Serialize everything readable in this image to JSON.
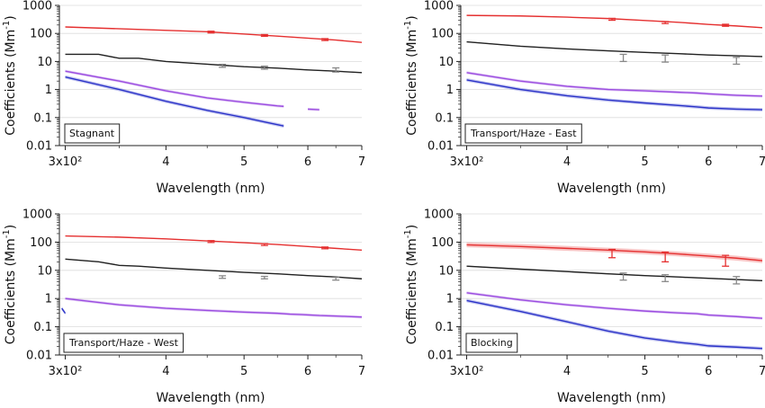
{
  "chart_data": [
    {
      "type": "line",
      "panel_label": "Stagnant",
      "xlabel": "Wavelength (nm)",
      "ylabel": "Coefficients (Mm",
      "ylabel_sup": "-1",
      "ylabel_close": ")",
      "xscale": "log",
      "yscale": "log",
      "xlim": [
        295,
        700
      ],
      "ylim": [
        0.01,
        1000
      ],
      "xticks": [
        "3x10²",
        "4",
        "5",
        "6",
        "7"
      ],
      "yticks": [
        "0.01",
        "0.1",
        "1",
        "10",
        "100",
        "1000"
      ],
      "grid": true,
      "series": [
        {
          "color": "#e53030",
          "x": [
            300,
            450,
            550,
            650,
            700
          ],
          "y": [
            170,
            115,
            80,
            58,
            48
          ],
          "band": 0.03,
          "errorbars": [
            {
              "x": 455,
              "y": 112,
              "lo": 104,
              "hi": 120
            },
            {
              "x": 530,
              "y": 85,
              "lo": 79,
              "hi": 91
            },
            {
              "x": 630,
              "y": 60,
              "lo": 56,
              "hi": 65
            }
          ]
        },
        {
          "color": "#222222",
          "x": [
            300,
            330,
            350,
            370,
            400,
            450,
            500,
            550,
            600,
            650,
            700
          ],
          "y": [
            18,
            18,
            13,
            13,
            10,
            8,
            6.5,
            5.8,
            5,
            4.5,
            4
          ],
          "band": 0.04,
          "errorbars": [
            {
              "x": 470,
              "y": 7,
              "lo": 6.2,
              "hi": 7.9
            },
            {
              "x": 530,
              "y": 6,
              "lo": 5.3,
              "hi": 6.8
            },
            {
              "x": 650,
              "y": 5,
              "lo": 4.2,
              "hi": 5.9
            }
          ]
        },
        {
          "color": "#9b4de0",
          "x": [
            300,
            350,
            400,
            450,
            500,
            550,
            560,
            580,
            600,
            620
          ],
          "y": [
            4.5,
            2.0,
            0.9,
            0.5,
            0.35,
            0.26,
            0.25,
            null,
            0.2,
            0.19
          ],
          "band": 0.12
        },
        {
          "color": "#2b33c8",
          "x": [
            300,
            350,
            400,
            450,
            500,
            530,
            560
          ],
          "y": [
            2.8,
            1.0,
            0.38,
            0.18,
            0.1,
            0.07,
            0.05
          ],
          "band": 0.15
        }
      ]
    },
    {
      "type": "line",
      "panel_label": "Transport/Haze - East",
      "xlabel": "Wavelength (nm)",
      "ylabel": "Coefficients (Mm",
      "ylabel_sup": "-1",
      "ylabel_close": ")",
      "xscale": "log",
      "yscale": "log",
      "xlim": [
        295,
        700
      ],
      "ylim": [
        0.01,
        1000
      ],
      "xticks": [
        "3x10²",
        "4",
        "5",
        "6",
        "7"
      ],
      "yticks": [
        "0.01",
        "0.1",
        "1",
        "10",
        "100",
        "1000"
      ],
      "grid": true,
      "series": [
        {
          "color": "#e53030",
          "x": [
            300,
            350,
            400,
            450,
            500,
            550,
            600,
            650,
            700
          ],
          "y": [
            440,
            420,
            380,
            340,
            290,
            250,
            210,
            185,
            160
          ],
          "band": 0.03,
          "errorbars": [
            {
              "x": 455,
              "y": 320,
              "lo": 295,
              "hi": 345
            },
            {
              "x": 530,
              "y": 245,
              "lo": 225,
              "hi": 265
            },
            {
              "x": 630,
              "y": 195,
              "lo": 180,
              "hi": 212
            }
          ]
        },
        {
          "color": "#222222",
          "x": [
            300,
            350,
            400,
            450,
            500,
            550,
            600,
            650,
            700
          ],
          "y": [
            50,
            35,
            28,
            24,
            21,
            19,
            17,
            16,
            15
          ],
          "band": 0.04,
          "errorbars": [
            {
              "x": 470,
              "y": 14,
              "lo": 10,
              "hi": 18
            },
            {
              "x": 530,
              "y": 13,
              "lo": 9.5,
              "hi": 17
            },
            {
              "x": 650,
              "y": 11,
              "lo": 8,
              "hi": 14
            }
          ]
        },
        {
          "color": "#9b4de0",
          "x": [
            300,
            350,
            400,
            450,
            500,
            550,
            580,
            600,
            650,
            700
          ],
          "y": [
            4,
            2.0,
            1.3,
            1.0,
            0.9,
            0.8,
            0.75,
            0.7,
            0.62,
            0.58
          ],
          "band": 0.12
        },
        {
          "color": "#2b33c8",
          "x": [
            300,
            350,
            400,
            450,
            500,
            550,
            580,
            600,
            650,
            700
          ],
          "y": [
            2.2,
            1.0,
            0.6,
            0.42,
            0.33,
            0.27,
            0.24,
            0.22,
            0.2,
            0.19
          ],
          "band": 0.15
        }
      ]
    },
    {
      "type": "line",
      "panel_label": "Transport/Haze - West",
      "xlabel": "Wavelength (nm)",
      "ylabel": "Coefficients (Mm",
      "ylabel_sup": "-1",
      "ylabel_close": ")",
      "xscale": "log",
      "yscale": "log",
      "xlim": [
        295,
        700
      ],
      "ylim": [
        0.01,
        1000
      ],
      "xticks": [
        "3x10²",
        "4",
        "5",
        "6",
        "7"
      ],
      "yticks": [
        "0.01",
        "0.1",
        "1",
        "10",
        "100",
        "1000"
      ],
      "grid": true,
      "series": [
        {
          "color": "#e53030",
          "x": [
            300,
            350,
            400,
            450,
            500,
            550,
            600,
            650,
            700
          ],
          "y": [
            165,
            150,
            130,
            110,
            95,
            82,
            70,
            60,
            52
          ],
          "band": 0.03,
          "errorbars": [
            {
              "x": 455,
              "y": 105,
              "lo": 97,
              "hi": 113
            },
            {
              "x": 530,
              "y": 82,
              "lo": 76,
              "hi": 88
            },
            {
              "x": 630,
              "y": 62,
              "lo": 58,
              "hi": 67
            }
          ]
        },
        {
          "color": "#222222",
          "x": [
            300,
            330,
            350,
            370,
            400,
            450,
            500,
            550,
            600,
            650,
            700
          ],
          "y": [
            25,
            20,
            15,
            14,
            12,
            10,
            8.5,
            7.5,
            6.5,
            5.8,
            5
          ],
          "band": 0.04,
          "errorbars": [
            {
              "x": 470,
              "y": 5.8,
              "lo": 5.2,
              "hi": 6.4
            },
            {
              "x": 530,
              "y": 5.5,
              "lo": 5,
              "hi": 6.1
            },
            {
              "x": 650,
              "y": 5,
              "lo": 4.5,
              "hi": 5.6
            }
          ]
        },
        {
          "color": "#9b4de0",
          "x": [
            300,
            350,
            400,
            450,
            500,
            550,
            570,
            590,
            620,
            650,
            700
          ],
          "y": [
            1.0,
            0.6,
            0.45,
            0.38,
            0.33,
            0.3,
            0.28,
            0.27,
            0.25,
            0.24,
            0.22
          ],
          "band": 0.12
        },
        {
          "color": "#2b33c8",
          "x": [
            297,
            300
          ],
          "y": [
            0.45,
            0.3
          ],
          "band": 0.15
        }
      ]
    },
    {
      "type": "line",
      "panel_label": "Blocking",
      "xlabel": "Wavelength (nm)",
      "ylabel": "Coefficients (Mm",
      "ylabel_sup": "-1",
      "ylabel_close": ")",
      "xscale": "log",
      "yscale": "log",
      "xlim": [
        295,
        700
      ],
      "ylim": [
        0.01,
        1000
      ],
      "xticks": [
        "3x10²",
        "4",
        "5",
        "6",
        "7"
      ],
      "yticks": [
        "0.01",
        "0.1",
        "1",
        "10",
        "100",
        "1000"
      ],
      "grid": true,
      "series": [
        {
          "color": "#e53030",
          "x": [
            300,
            350,
            400,
            450,
            500,
            550,
            600,
            650,
            700
          ],
          "y": [
            80,
            70,
            60,
            52,
            45,
            38,
            32,
            27,
            22
          ],
          "band": 0.22,
          "errorbars": [
            {
              "x": 455,
              "y": 40,
              "lo": 28,
              "hi": 55
            },
            {
              "x": 530,
              "y": 30,
              "lo": 20,
              "hi": 44
            },
            {
              "x": 630,
              "y": 22,
              "lo": 14,
              "hi": 34
            }
          ]
        },
        {
          "color": "#222222",
          "x": [
            300,
            350,
            400,
            450,
            500,
            550,
            600,
            650,
            700
          ],
          "y": [
            14,
            11,
            9,
            7.5,
            6.5,
            5.8,
            5.2,
            4.7,
            4.3
          ],
          "band": 0.05,
          "errorbars": [
            {
              "x": 470,
              "y": 6,
              "lo": 4.5,
              "hi": 8
            },
            {
              "x": 530,
              "y": 5.2,
              "lo": 4,
              "hi": 7
            },
            {
              "x": 650,
              "y": 4.5,
              "lo": 3.3,
              "hi": 6
            }
          ]
        },
        {
          "color": "#9b4de0",
          "x": [
            300,
            350,
            400,
            450,
            500,
            550,
            580,
            600,
            650,
            700
          ],
          "y": [
            1.6,
            0.9,
            0.6,
            0.45,
            0.36,
            0.31,
            0.29,
            0.26,
            0.23,
            0.2
          ],
          "band": 0.12
        },
        {
          "color": "#2b33c8",
          "x": [
            300,
            350,
            400,
            450,
            500,
            550,
            580,
            600,
            650,
            700
          ],
          "y": [
            0.85,
            0.35,
            0.15,
            0.07,
            0.04,
            0.028,
            0.024,
            0.021,
            0.019,
            0.017
          ],
          "band": 0.15
        }
      ]
    }
  ]
}
